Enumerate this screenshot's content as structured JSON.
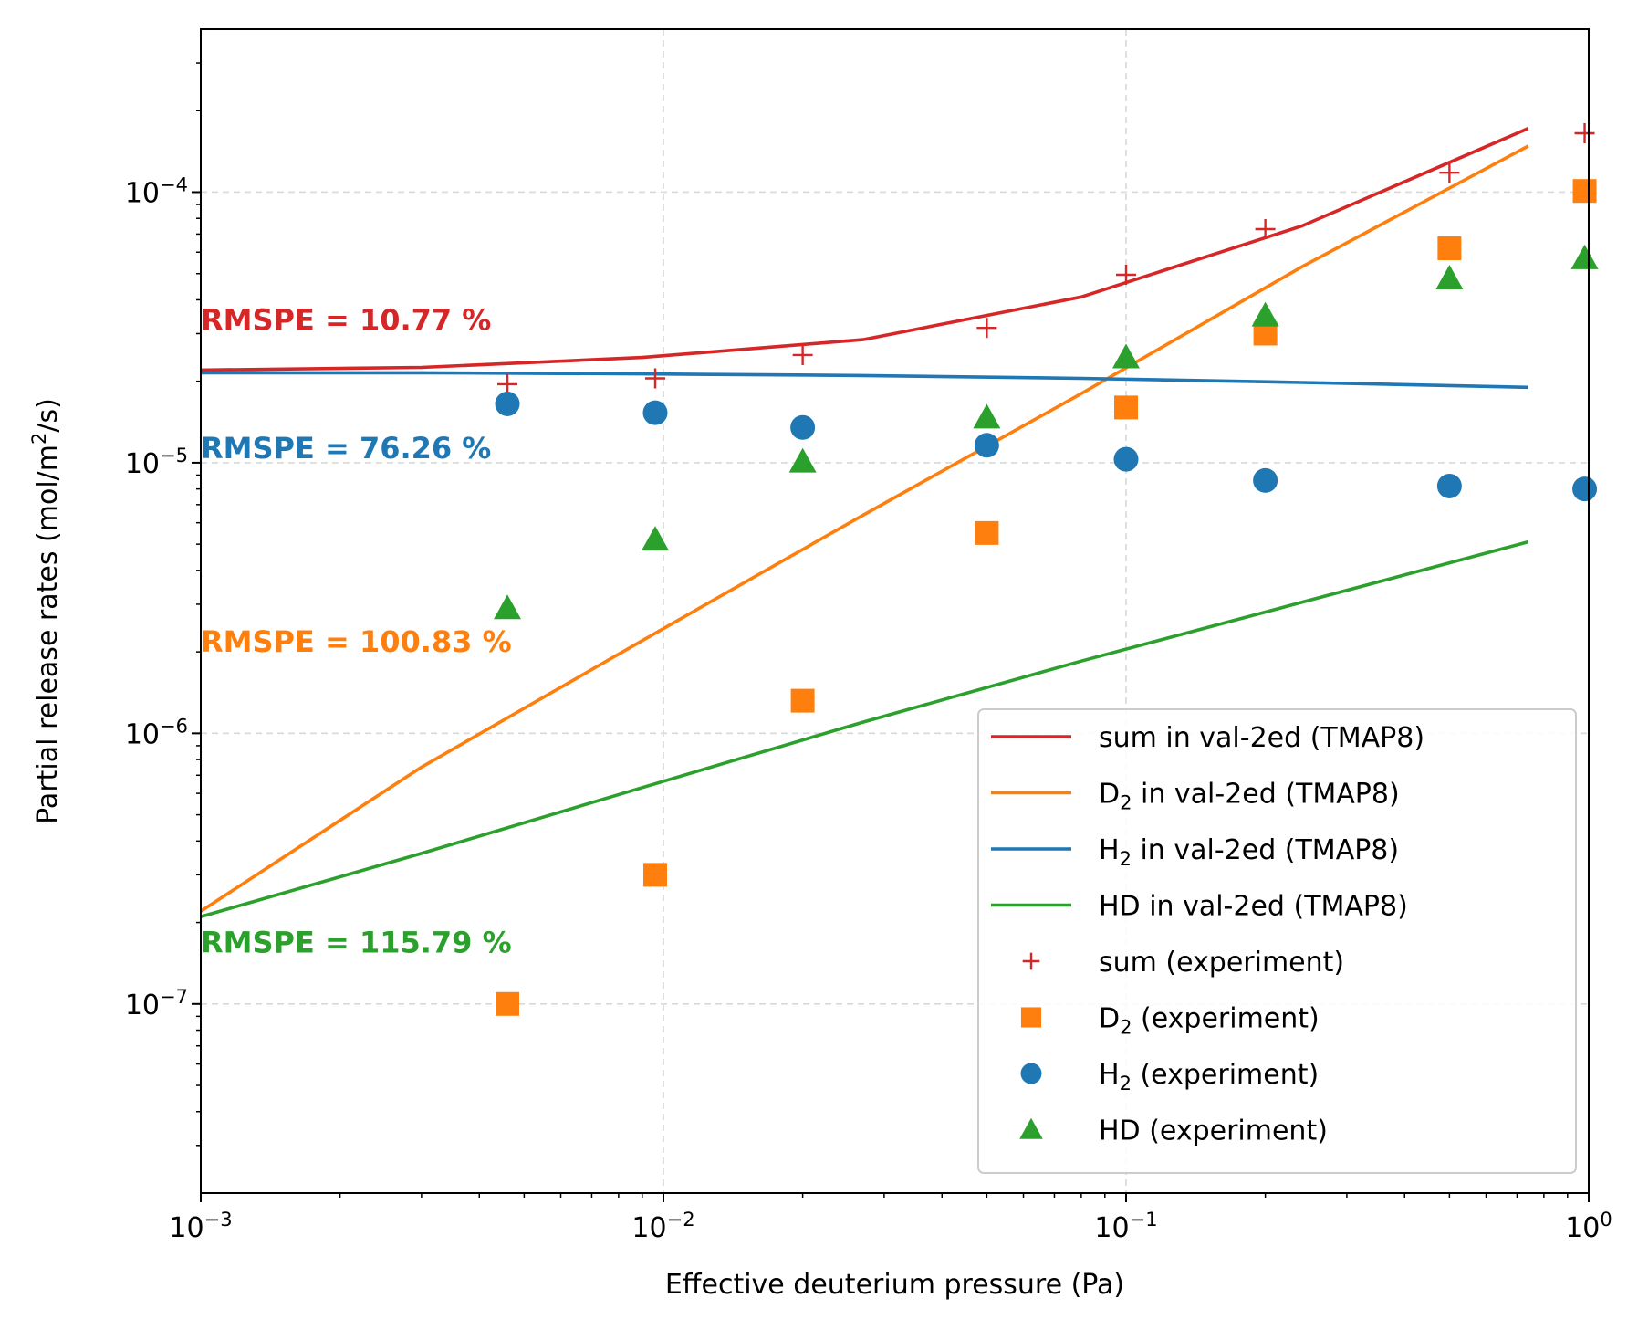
{
  "chart_data": {
    "type": "line",
    "xlabel": "Effective deuterium pressure (Pa)",
    "ylabel_parts": [
      "Partial release rates (mol/m",
      "2",
      "/s)"
    ],
    "x_scale": "log",
    "y_scale": "log",
    "xlim": [
      0.001,
      1
    ],
    "ylim": [
      2e-08,
      0.0004
    ],
    "grid": true,
    "x_ticks": [
      {
        "value": 0.001,
        "base": "10",
        "exp": "−3"
      },
      {
        "value": 0.01,
        "base": "10",
        "exp": "−2"
      },
      {
        "value": 0.1,
        "base": "10",
        "exp": "−1"
      },
      {
        "value": 1,
        "base": "10",
        "exp": "0"
      }
    ],
    "y_ticks": [
      {
        "value": 1e-07,
        "base": "10",
        "exp": "−7"
      },
      {
        "value": 1e-06,
        "base": "10",
        "exp": "−6"
      },
      {
        "value": 1e-05,
        "base": "10",
        "exp": "−5"
      },
      {
        "value": 0.0001,
        "base": "10",
        "exp": "−4"
      }
    ],
    "legend_placement": "lower right",
    "series": [
      {
        "name_parts": [
          "sum in val-2ed (TMAP8)"
        ],
        "kind": "line",
        "color": "#d62728",
        "points": [
          [
            0.001,
            2.2e-05
          ],
          [
            0.003,
            2.25e-05
          ],
          [
            0.009,
            2.45e-05
          ],
          [
            0.027,
            2.85e-05
          ],
          [
            0.08,
            4.1e-05
          ],
          [
            0.24,
            7.5e-05
          ],
          [
            0.74,
            0.000172
          ]
        ]
      },
      {
        "name_parts": [
          "D",
          "2",
          " in val-2ed (TMAP8)"
        ],
        "kind": "line",
        "color": "#ff7f0e",
        "points": [
          [
            0.001,
            2.2e-07
          ],
          [
            0.003,
            7.5e-07
          ],
          [
            0.009,
            2.2e-06
          ],
          [
            0.027,
            6.4e-06
          ],
          [
            0.08,
            1.8e-05
          ],
          [
            0.24,
            5.3e-05
          ],
          [
            0.74,
            0.000148
          ]
        ]
      },
      {
        "name_parts": [
          "H",
          "2",
          " in val-2ed (TMAP8)"
        ],
        "kind": "line",
        "color": "#1f77b4",
        "points": [
          [
            0.001,
            2.15e-05
          ],
          [
            0.003,
            2.15e-05
          ],
          [
            0.009,
            2.13e-05
          ],
          [
            0.027,
            2.1e-05
          ],
          [
            0.08,
            2.05e-05
          ],
          [
            0.24,
            1.98e-05
          ],
          [
            0.74,
            1.9e-05
          ]
        ]
      },
      {
        "name_parts": [
          "HD in val-2ed (TMAP8)"
        ],
        "kind": "line",
        "color": "#2ca02c",
        "points": [
          [
            0.001,
            2.1e-07
          ],
          [
            0.003,
            3.6e-07
          ],
          [
            0.009,
            6.3e-07
          ],
          [
            0.027,
            1.1e-06
          ],
          [
            0.08,
            1.85e-06
          ],
          [
            0.24,
            3.05e-06
          ],
          [
            0.74,
            5.1e-06
          ]
        ]
      },
      {
        "name_parts": [
          "sum (experiment)"
        ],
        "kind": "marker",
        "marker": "plus",
        "color": "#d62728",
        "points": [
          [
            0.0046,
            1.95e-05
          ],
          [
            0.0096,
            2.05e-05
          ],
          [
            0.02,
            2.5e-05
          ],
          [
            0.05,
            3.15e-05
          ],
          [
            0.1,
            4.95e-05
          ],
          [
            0.2,
            7.3e-05
          ],
          [
            0.5,
            0.000118
          ],
          [
            0.98,
            0.000165
          ]
        ]
      },
      {
        "name_parts": [
          "D",
          "2",
          " (experiment)"
        ],
        "kind": "marker",
        "marker": "square",
        "color": "#ff7f0e",
        "points": [
          [
            0.0046,
            1e-07
          ],
          [
            0.0096,
            3e-07
          ],
          [
            0.02,
            1.32e-06
          ],
          [
            0.05,
            5.5e-06
          ],
          [
            0.1,
            1.6e-05
          ],
          [
            0.2,
            3e-05
          ],
          [
            0.5,
            6.2e-05
          ],
          [
            0.98,
            0.000101
          ]
        ]
      },
      {
        "name_parts": [
          "H",
          "2",
          " (experiment)"
        ],
        "kind": "marker",
        "marker": "circle",
        "color": "#1f77b4",
        "points": [
          [
            0.0046,
            1.65e-05
          ],
          [
            0.0096,
            1.53e-05
          ],
          [
            0.02,
            1.35e-05
          ],
          [
            0.05,
            1.16e-05
          ],
          [
            0.1,
            1.03e-05
          ],
          [
            0.2,
            8.6e-06
          ],
          [
            0.5,
            8.2e-06
          ],
          [
            0.98,
            8e-06
          ]
        ]
      },
      {
        "name_parts": [
          "HD (experiment)"
        ],
        "kind": "marker",
        "marker": "triangle",
        "color": "#2ca02c",
        "points": [
          [
            0.0046,
            2.9e-06
          ],
          [
            0.0096,
            5.2e-06
          ],
          [
            0.02,
            1.01e-05
          ],
          [
            0.05,
            1.47e-05
          ],
          [
            0.1,
            2.45e-05
          ],
          [
            0.2,
            3.5e-05
          ],
          [
            0.5,
            4.8e-05
          ],
          [
            0.98,
            5.7e-05
          ]
        ]
      }
    ],
    "annotations": [
      {
        "text": "RMSPE = 10.77 %",
        "color": "#d62728",
        "x": 0.001,
        "y": 3.1e-05
      },
      {
        "text": "RMSPE = 76.26 %",
        "color": "#1f77b4",
        "x": 0.001,
        "y": 1.04e-05
      },
      {
        "text": "RMSPE = 100.83 %",
        "color": "#ff7f0e",
        "x": 0.001,
        "y": 2e-06
      },
      {
        "text": "RMSPE = 115.79 %",
        "color": "#2ca02c",
        "x": 0.001,
        "y": 1.55e-07
      }
    ]
  }
}
